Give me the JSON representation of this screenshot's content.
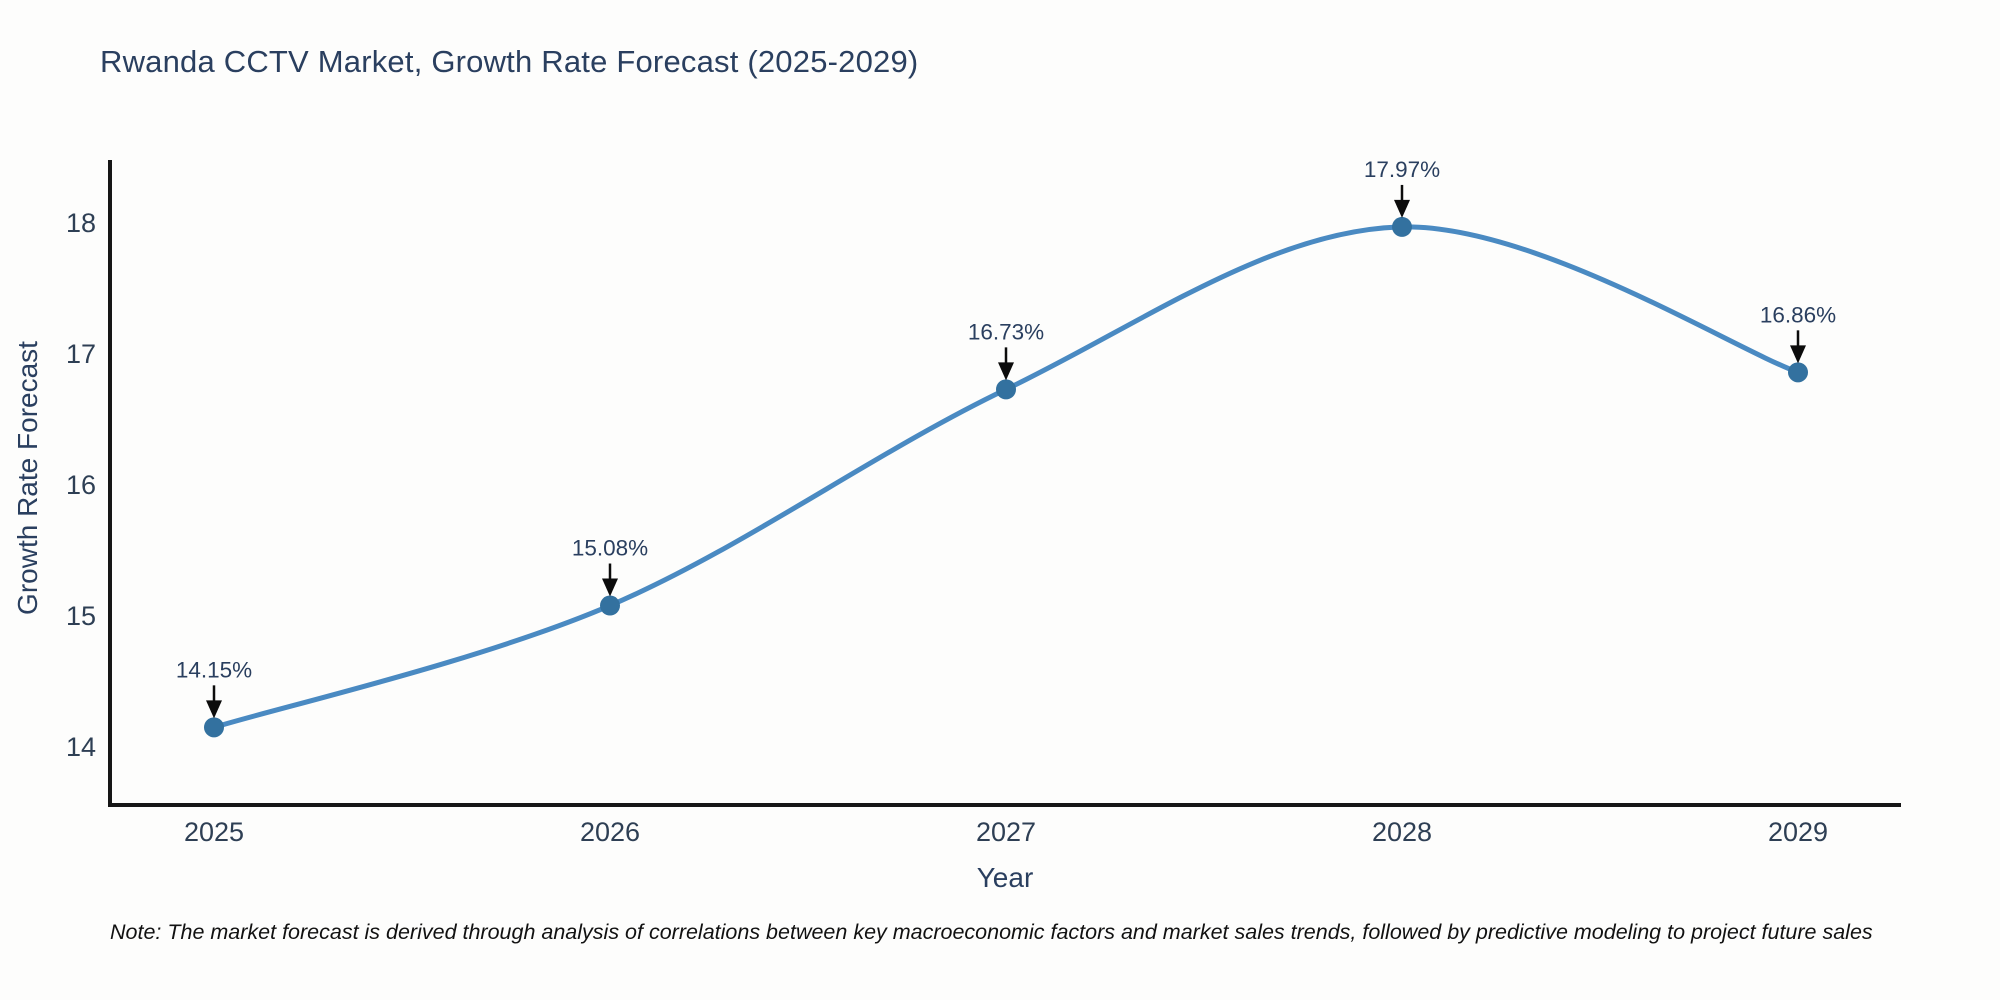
{
  "title": "Rwanda CCTV Market, Growth Rate Forecast (2025-2029)",
  "note": "Note: The market forecast is derived through analysis of correlations between key macroeconomic factors and market sales trends, followed by predictive modeling to project future sales",
  "chart_data": {
    "type": "line",
    "title": "Rwanda CCTV Market, Growth Rate Forecast (2025-2029)",
    "xlabel": "Year",
    "ylabel": "Growth Rate Forecast",
    "x": [
      2025,
      2026,
      2027,
      2028,
      2029
    ],
    "values": [
      14.15,
      15.08,
      16.73,
      17.97,
      16.86
    ],
    "point_labels": [
      "14.15%",
      "15.08%",
      "16.73%",
      "17.97%",
      "16.86%"
    ],
    "yticks": [
      14,
      15,
      16,
      17,
      18
    ],
    "ylim": [
      13.69,
      18.47
    ],
    "grid": false,
    "legend": null,
    "line_color": "#4a8ac2",
    "marker_color": "#33719f",
    "arrow_color": "#0c0c0c",
    "axis_color": "#161616",
    "tick_color": "#2e3f54",
    "label_color": "#2a3f5f"
  }
}
